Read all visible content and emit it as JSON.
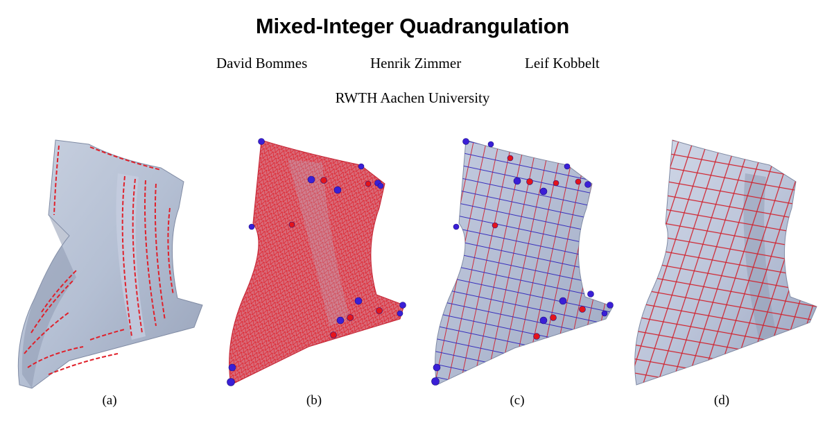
{
  "paper": {
    "title": "Mixed-Integer Quadrangulation",
    "authors": [
      "David Bommes",
      "Henrik Zimmer",
      "Leif Kobbelt"
    ],
    "affiliation": "RWTH Aachen University"
  },
  "figure": {
    "panels": [
      {
        "label": "(a)",
        "kind": "cross-field-streaks"
      },
      {
        "label": "(b)",
        "kind": "dense-triangle-mesh-with-singularities"
      },
      {
        "label": "(c)",
        "kind": "parametrization-grid-with-singularities"
      },
      {
        "label": "(d)",
        "kind": "quad-mesh"
      }
    ],
    "colors": {
      "surface": "#b4bfd3",
      "surface_shade": "#8f9ab2",
      "surface_light": "#d4dbe8",
      "mesh_line": "#e0202a",
      "singularity_blue": "#3a1fd6",
      "singularity_red": "#e3141c",
      "grid_blue": "#2a1fb8"
    }
  }
}
